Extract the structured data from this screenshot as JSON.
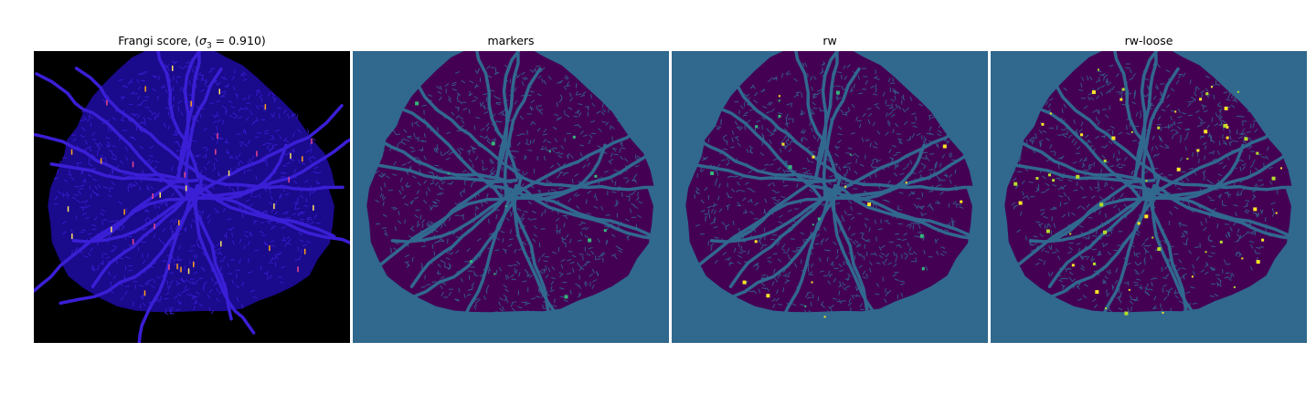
{
  "figure": {
    "panels": [
      {
        "id": "frangi",
        "title_prefix": "Frangi score, (",
        "title_sigma": "σ",
        "title_sub": "3",
        "title_suffix": " = 0.910)",
        "background": "#000000",
        "disk_color": "#1a0a8c",
        "vessel_color": "#3a1fd6",
        "highlight_colors": [
          "#ff9f1c",
          "#e8468a",
          "#ffe066"
        ]
      },
      {
        "id": "markers",
        "title": "markers",
        "background": "#30688e",
        "disk_color": "#440154",
        "vessel_color": "#31688e",
        "highlight_colors": [
          "#35b779"
        ]
      },
      {
        "id": "rw",
        "title": "rw",
        "background": "#30688e",
        "disk_color": "#440154",
        "vessel_color": "#31688e",
        "highlight_colors": [
          "#fde725",
          "#35b779"
        ]
      },
      {
        "id": "rw-loose",
        "title": "rw-loose",
        "background": "#30688e",
        "disk_color": "#440154",
        "vessel_color": "#31688e",
        "highlight_colors": [
          "#fde725",
          "#b5de2b"
        ]
      }
    ]
  }
}
